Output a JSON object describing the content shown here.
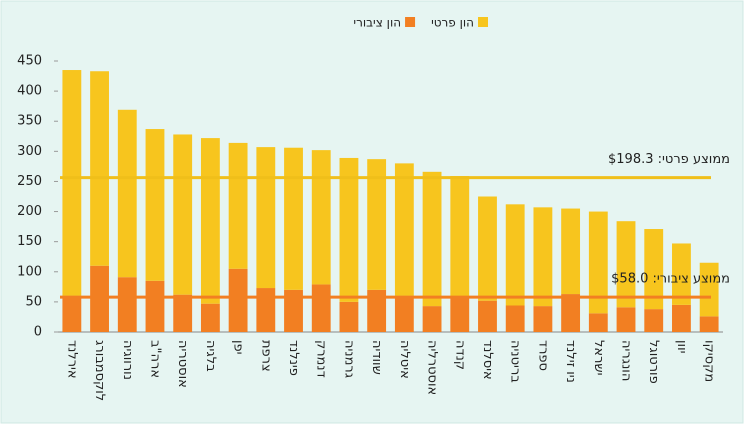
{
  "chart_data": {
    "type": "stacked_bar",
    "categories": [
      "אירלנד",
      "לוקסמבורג",
      "נורווגיה",
      "ארה\"ב",
      "אוסטריה",
      "בלגיה",
      "יפן",
      "צרפת",
      "פינלנד",
      "דנמרק",
      "גרמניה",
      "שוודיה",
      "איטליה",
      "אוסטרליה",
      "קנדה",
      "איסלנד",
      "בריטניה",
      "ספרד",
      "ניו זילנד",
      "ישראל",
      "הונגריה",
      "פורטוגל",
      "יוון",
      "מקסיקו"
    ],
    "series": [
      {
        "name": "הון ציבורי",
        "color": "#f27f22",
        "values": [
          60,
          110,
          91,
          85,
          62,
          47,
          105,
          73,
          70,
          79,
          50,
          70,
          60,
          43,
          58,
          52,
          44,
          43,
          63,
          31,
          41,
          38,
          45,
          26
        ]
      },
      {
        "name": "הון פרטי",
        "color": "#f7c51e",
        "values": [
          375,
          323,
          278,
          252,
          266,
          275,
          209,
          234,
          236,
          223,
          239,
          217,
          220,
          223,
          201,
          173,
          168,
          164,
          142,
          169,
          143,
          133,
          102,
          89
        ]
      }
    ],
    "ylim": [
      0,
      450
    ],
    "yticks": [
      0,
      50,
      100,
      150,
      200,
      250,
      300,
      350,
      400,
      450
    ],
    "grid": false,
    "legend": "top",
    "annotations": [
      {
        "label": "ממוצע ציבורי: $58.0",
        "value": 58.0,
        "color": "#f27f22"
      },
      {
        "label": "ממוצע פרטי: $198.3",
        "value": 198.3,
        "color": "#f0bf1a"
      }
    ]
  }
}
